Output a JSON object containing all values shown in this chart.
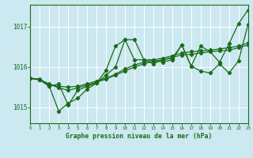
{
  "background_color": "#cce8f0",
  "grid_color": "#ffffff",
  "line_color": "#1a6b1a",
  "title": "Graphe pression niveau de la mer (hPa)",
  "xlim": [
    0,
    23
  ],
  "ylim": [
    1014.6,
    1017.55
  ],
  "yticks": [
    1015,
    1016,
    1017
  ],
  "xticks": [
    0,
    1,
    2,
    3,
    4,
    5,
    6,
    7,
    8,
    9,
    10,
    11,
    12,
    13,
    14,
    15,
    16,
    17,
    18,
    19,
    20,
    21,
    22,
    23
  ],
  "series": [
    {
      "x": [
        0,
        1,
        2,
        3,
        4,
        5,
        6,
        7,
        8,
        9,
        10,
        11,
        12,
        13,
        14,
        15,
        16,
        17,
        18,
        19,
        20,
        21,
        22,
        23
      ],
      "y": [
        1015.72,
        1015.7,
        1015.55,
        1015.52,
        1015.5,
        1015.52,
        1015.58,
        1015.65,
        1015.72,
        1015.82,
        1015.95,
        1016.05,
        1016.12,
        1016.18,
        1016.22,
        1016.28,
        1016.35,
        1016.38,
        1016.4,
        1016.42,
        1016.45,
        1016.48,
        1016.52,
        1016.6
      ]
    },
    {
      "x": [
        0,
        1,
        2,
        3,
        4,
        5,
        6,
        7,
        8,
        9,
        10,
        11,
        12,
        13,
        14,
        15,
        16,
        17,
        18,
        19,
        20,
        21,
        22,
        23
      ],
      "y": [
        1015.72,
        1015.68,
        1015.58,
        1015.48,
        1015.42,
        1015.48,
        1015.55,
        1015.62,
        1015.7,
        1015.8,
        1015.9,
        1016.0,
        1016.08,
        1016.14,
        1016.18,
        1016.24,
        1016.3,
        1016.32,
        1016.35,
        1016.38,
        1016.4,
        1016.42,
        1016.48,
        1016.55
      ]
    },
    {
      "x": [
        0,
        1,
        2,
        3,
        4,
        5,
        6,
        7,
        8,
        9,
        10,
        11,
        12,
        13,
        14,
        15,
        16,
        17,
        18,
        19,
        20,
        21,
        22,
        23
      ],
      "y": [
        1015.72,
        1015.68,
        1015.52,
        1014.9,
        1015.1,
        1015.22,
        1015.45,
        1015.6,
        1015.8,
        1016.0,
        1016.68,
        1016.68,
        1016.18,
        1016.18,
        1016.12,
        1016.18,
        1016.55,
        1016.02,
        1015.9,
        1015.85,
        1016.08,
        1015.85,
        1016.15,
        1017.05
      ]
    },
    {
      "x": [
        0,
        1,
        2,
        3,
        4,
        5,
        6,
        7,
        8,
        9,
        10,
        11,
        12,
        13,
        14,
        15,
        16,
        17,
        18,
        19,
        20,
        21,
        22,
        23
      ],
      "y": [
        1015.72,
        1015.68,
        1015.52,
        1015.58,
        1015.05,
        1015.42,
        1015.52,
        1015.6,
        1015.92,
        1016.52,
        1016.68,
        1016.18,
        1016.18,
        1016.08,
        1016.18,
        1016.22,
        1016.55,
        1016.02,
        1016.52,
        1016.38,
        1016.12,
        1016.58,
        1017.08,
        1017.42
      ]
    }
  ]
}
